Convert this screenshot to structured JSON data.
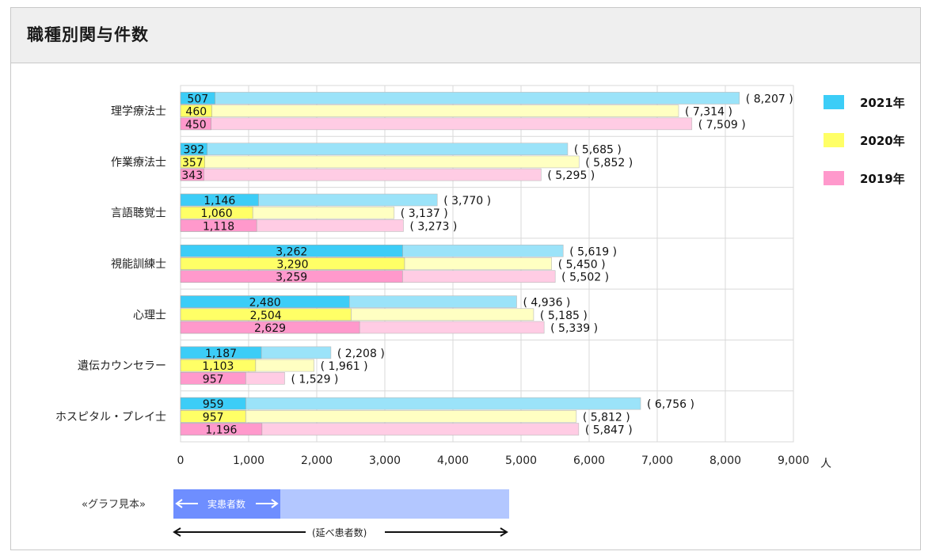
{
  "title": "職種別関与件数",
  "colors": {
    "c2021": "#3ccdf7",
    "c2021_light": "#9be3f9",
    "c2020": "#ffff66",
    "c2020_light": "#ffffc2",
    "c2019": "#ff99cc",
    "c2019_light": "#ffcce4",
    "grid": "#d9d9d9",
    "sample_inner": "#6e8eff",
    "sample_outer": "#b3c7ff"
  },
  "legend": [
    {
      "label": "2021年",
      "color": "#3ccdf7"
    },
    {
      "label": "2020年",
      "color": "#ffff66"
    },
    {
      "label": "2019年",
      "color": "#ff99cc"
    }
  ],
  "chart_data": {
    "type": "bar",
    "orientation": "horizontal",
    "categories": [
      "理学療法士",
      "作業療法士",
      "言語聴覚士",
      "視能訓練士",
      "心理士",
      "遺伝カウンセラー",
      "ホスピタル・プレイ士"
    ],
    "series": [
      {
        "name": "2021年",
        "values": [
          507,
          392,
          1146,
          3262,
          2480,
          1187,
          959
        ],
        "value_labels": [
          "507",
          "392",
          "1,146",
          "3,262",
          "2,480",
          "1,187",
          "959"
        ],
        "totals": [
          8207,
          5685,
          3770,
          5619,
          4936,
          2208,
          6756
        ],
        "total_labels": [
          "( 8,207 )",
          "( 5,685 )",
          "( 3,770 )",
          "( 5,619 )",
          "( 4,936 )",
          "( 2,208 )",
          "( 6,756 )"
        ]
      },
      {
        "name": "2020年",
        "values": [
          460,
          357,
          1060,
          3290,
          2504,
          1103,
          957
        ],
        "value_labels": [
          "460",
          "357",
          "1,060",
          "3,290",
          "2,504",
          "1,103",
          "957"
        ],
        "totals": [
          7314,
          5852,
          3137,
          5450,
          5185,
          1961,
          5812
        ],
        "total_labels": [
          "( 7,314 )",
          "( 5,852 )",
          "( 3,137 )",
          "( 5,450 )",
          "( 5,185 )",
          "( 1,961 )",
          "( 5,812 )"
        ]
      },
      {
        "name": "2019年",
        "values": [
          450,
          343,
          1118,
          3259,
          2629,
          957,
          1196
        ],
        "value_labels": [
          "450",
          "343",
          "1,118",
          "3,259",
          "2,629",
          "957",
          "1,196"
        ],
        "totals": [
          7509,
          5295,
          3273,
          5502,
          5339,
          1529,
          5847
        ],
        "total_labels": [
          "( 7,509 )",
          "( 5,295 )",
          "( 3,273 )",
          "( 5,502 )",
          "( 5,339 )",
          "( 1,529 )",
          "( 5,847 )"
        ]
      }
    ],
    "xlim": [
      0,
      9000
    ],
    "xticks": [
      0,
      1000,
      2000,
      3000,
      4000,
      5000,
      6000,
      7000,
      8000,
      9000
    ],
    "xtick_labels": [
      "0",
      "1,000",
      "2,000",
      "3,000",
      "4,000",
      "5,000",
      "6,000",
      "7,000",
      "8,000",
      "9,000"
    ],
    "xunit": "人",
    "grid": true,
    "legend_position": "right"
  },
  "sample": {
    "label": "«グラフ見本»",
    "inner_label": "実患者数",
    "total_label": "(延べ患者数)"
  }
}
